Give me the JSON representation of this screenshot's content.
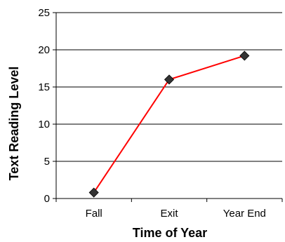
{
  "chart_data": {
    "type": "line",
    "categories": [
      "Fall",
      "Exit",
      "Year End"
    ],
    "series": [
      {
        "values": [
          0.8,
          16.0,
          19.2
        ],
        "color": "#ff0000",
        "marker": "diamond",
        "marker_color": "#333333"
      }
    ],
    "xlabel": "Time of Year",
    "ylabel": "Text Reading Level",
    "ylim": [
      0,
      25
    ],
    "yticks": [
      0,
      5,
      10,
      15,
      20,
      25
    ],
    "grid": "horizontal",
    "legend": "none"
  }
}
